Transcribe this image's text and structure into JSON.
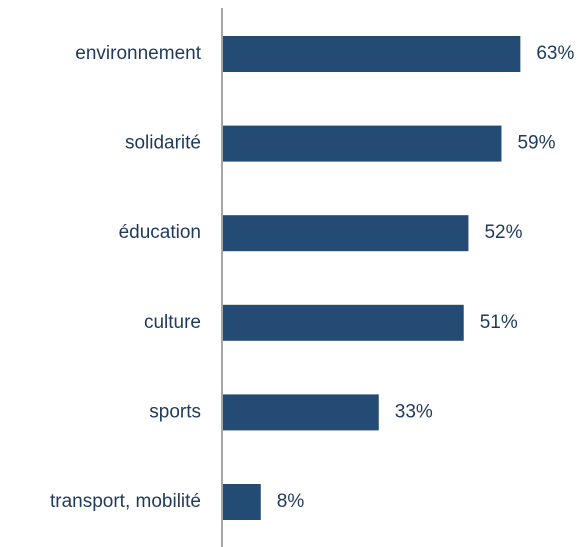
{
  "chart_data": {
    "type": "bar",
    "orientation": "horizontal",
    "categories": [
      "environnement",
      "solidarité",
      "éducation",
      "culture",
      "sports",
      "transport, mobilité"
    ],
    "values": [
      63,
      59,
      52,
      51,
      33,
      8
    ],
    "value_labels": [
      "63%",
      "59%",
      "52%",
      "51%",
      "33%",
      "8%"
    ],
    "color": "#234b73"
  }
}
